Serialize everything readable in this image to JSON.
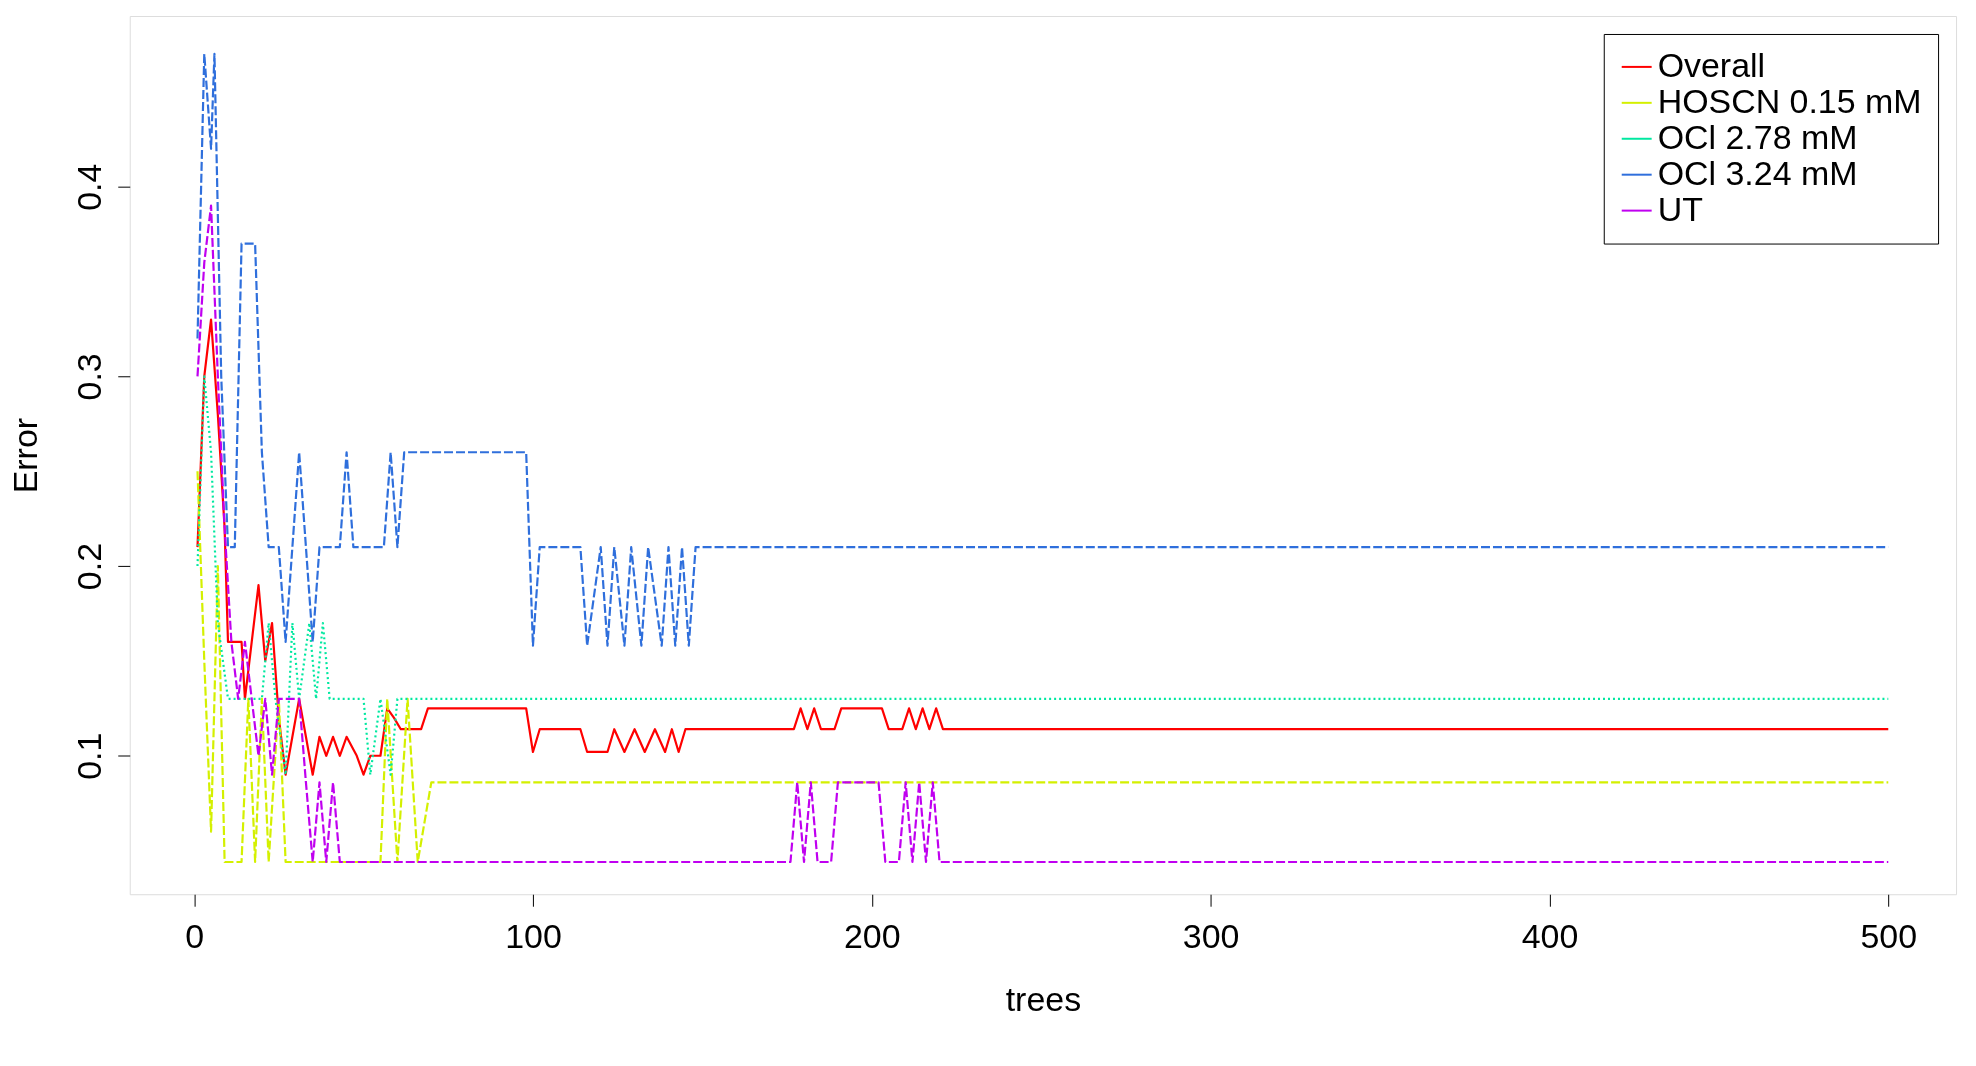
{
  "chart_data": {
    "type": "line",
    "xlabel": "trees",
    "ylabel": "Error",
    "xlim": [
      -19,
      520
    ],
    "ylim": [
      0.027,
      0.49
    ],
    "xticks": [
      0,
      100,
      200,
      300,
      400,
      500
    ],
    "yticks": [
      0.1,
      0.2,
      0.3,
      0.4
    ],
    "grid": false,
    "legend": "top right",
    "marker": "none",
    "series": [
      {
        "name": "Overall",
        "color": "#ff0000",
        "line_style": "solid",
        "x": [
          1,
          3,
          5,
          7,
          9,
          10,
          14,
          15,
          17,
          19,
          21,
          23,
          25,
          27,
          29,
          31,
          33,
          35,
          37,
          39,
          41,
          43,
          45,
          48,
          50,
          52,
          55,
          57,
          59,
          61,
          67,
          69,
          98,
          100,
          102,
          114,
          116,
          122,
          124,
          127,
          130,
          133,
          136,
          139,
          141,
          143,
          145,
          177,
          179,
          181,
          183,
          185,
          189,
          191,
          203,
          205,
          209,
          211,
          213,
          215,
          217,
          219,
          221,
          500
        ],
        "values": [
          0.21,
          0.3,
          0.33,
          0.28,
          0.22,
          0.16,
          0.16,
          0.13,
          0.16,
          0.19,
          0.15,
          0.17,
          0.12,
          0.09,
          0.11,
          0.13,
          0.11,
          0.09,
          0.11,
          0.1,
          0.11,
          0.1,
          0.11,
          0.1,
          0.09,
          0.1,
          0.1,
          0.125,
          0.12,
          0.114,
          0.114,
          0.125,
          0.125,
          0.102,
          0.114,
          0.114,
          0.102,
          0.102,
          0.114,
          0.102,
          0.114,
          0.102,
          0.114,
          0.102,
          0.114,
          0.102,
          0.114,
          0.114,
          0.125,
          0.114,
          0.125,
          0.114,
          0.114,
          0.125,
          0.125,
          0.114,
          0.114,
          0.125,
          0.114,
          0.125,
          0.114,
          0.125,
          0.114,
          0.114
        ]
      },
      {
        "name": "HOSCN 0.15 mM",
        "color": "#d4f000",
        "line_style": "dashed",
        "x": [
          1,
          3,
          5,
          7,
          9,
          14,
          16,
          18,
          20,
          22,
          25,
          27,
          55,
          57,
          60,
          63,
          66,
          70,
          500
        ],
        "values": [
          0.25,
          0.15,
          0.06,
          0.2,
          0.044,
          0.044,
          0.13,
          0.044,
          0.13,
          0.044,
          0.13,
          0.044,
          0.044,
          0.13,
          0.044,
          0.13,
          0.044,
          0.086,
          0.086
        ]
      },
      {
        "name": "OCl 2.78 mM",
        "color": "#00e8a0",
        "line_style": "dotted",
        "x": [
          1,
          3,
          5,
          7,
          10,
          20,
          22,
          24,
          27,
          29,
          31,
          34,
          36,
          38,
          40,
          50,
          52,
          55,
          58,
          60,
          500
        ],
        "values": [
          0.2,
          0.3,
          0.26,
          0.17,
          0.13,
          0.13,
          0.17,
          0.13,
          0.09,
          0.17,
          0.13,
          0.17,
          0.13,
          0.17,
          0.13,
          0.13,
          0.09,
          0.13,
          0.09,
          0.13,
          0.13
        ]
      },
      {
        "name": "OCl 3.24 mM",
        "color": "#2f6fdc",
        "line_style": "dashed",
        "x": [
          1,
          3,
          5,
          6,
          8,
          10,
          12,
          14,
          18,
          20,
          22,
          25,
          27,
          29,
          31,
          33,
          35,
          37,
          43,
          45,
          47,
          56,
          58,
          60,
          62,
          98,
          100,
          102,
          114,
          116,
          120,
          122,
          124,
          127,
          129,
          132,
          134,
          138,
          140,
          142,
          144,
          146,
          148,
          500
        ],
        "values": [
          0.32,
          0.47,
          0.42,
          0.47,
          0.3,
          0.21,
          0.21,
          0.37,
          0.37,
          0.26,
          0.21,
          0.21,
          0.16,
          0.21,
          0.26,
          0.21,
          0.16,
          0.21,
          0.21,
          0.26,
          0.21,
          0.21,
          0.26,
          0.21,
          0.26,
          0.26,
          0.158,
          0.21,
          0.21,
          0.158,
          0.21,
          0.158,
          0.21,
          0.158,
          0.21,
          0.158,
          0.21,
          0.158,
          0.21,
          0.158,
          0.21,
          0.158,
          0.21,
          0.21
        ]
      },
      {
        "name": "UT",
        "color": "#c000f0",
        "line_style": "dashed",
        "x": [
          1,
          3,
          5,
          7,
          9,
          11,
          13,
          15,
          17,
          19,
          21,
          23,
          25,
          27,
          31,
          33,
          35,
          37,
          39,
          41,
          43,
          176,
          178,
          180,
          182,
          184,
          188,
          190,
          202,
          204,
          208,
          210,
          212,
          214,
          216,
          218,
          220,
          500
        ],
        "values": [
          0.3,
          0.36,
          0.39,
          0.3,
          0.22,
          0.16,
          0.13,
          0.16,
          0.13,
          0.1,
          0.13,
          0.09,
          0.13,
          0.13,
          0.13,
          0.086,
          0.044,
          0.086,
          0.044,
          0.086,
          0.044,
          0.044,
          0.086,
          0.044,
          0.086,
          0.044,
          0.044,
          0.086,
          0.086,
          0.044,
          0.044,
          0.086,
          0.044,
          0.086,
          0.044,
          0.086,
          0.044,
          0.044
        ]
      }
    ]
  }
}
